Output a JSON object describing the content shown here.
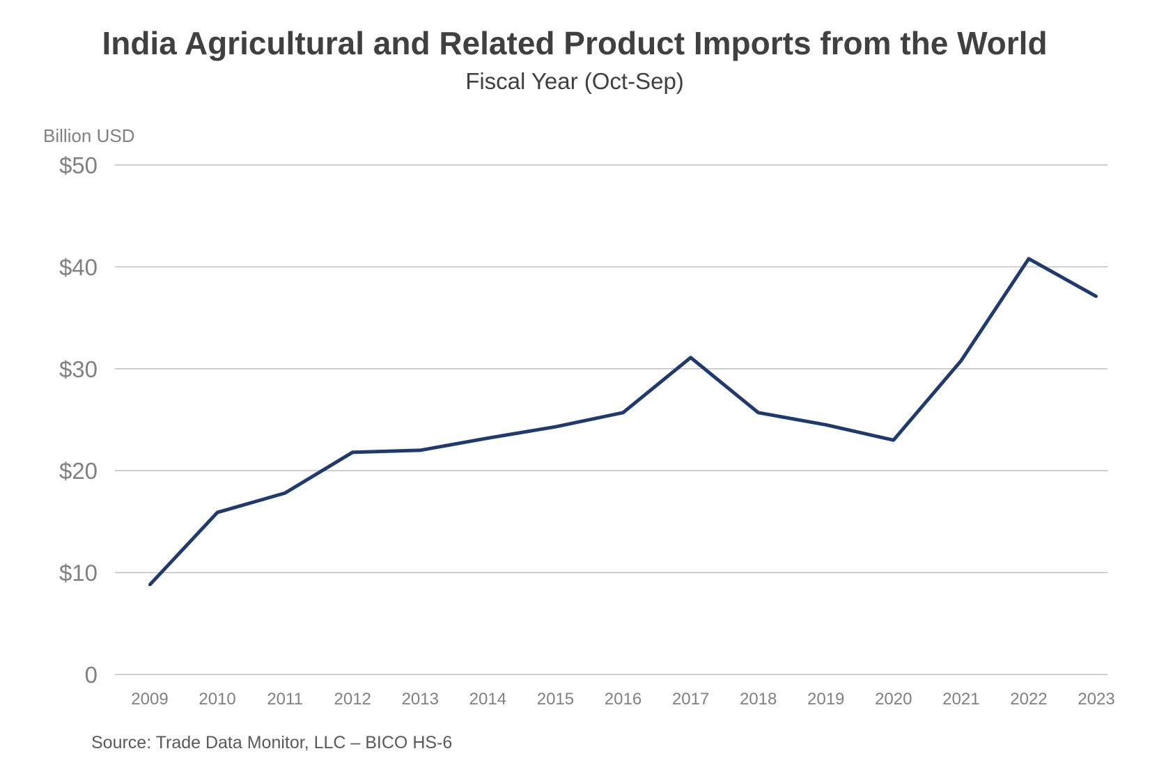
{
  "chart_data": {
    "type": "line",
    "title": "India Agricultural and Related Product Imports from the World",
    "subtitle": "Fiscal Year (Oct-Sep)",
    "ylabel": "Billion USD",
    "xlabel": "",
    "source": "Source: Trade Data Monitor, LLC – BICO HS-6",
    "ylim": [
      0,
      50
    ],
    "y_ticks": [
      0,
      10,
      20,
      30,
      40,
      50
    ],
    "y_tick_labels": [
      "0",
      "$10",
      "$20",
      "$30",
      "$40",
      "$50"
    ],
    "grid": true,
    "legend": "none",
    "categories": [
      "2009",
      "2010",
      "2011",
      "2012",
      "2013",
      "2014",
      "2015",
      "2016",
      "2017",
      "2018",
      "2019",
      "2020",
      "2021",
      "2022",
      "2023"
    ],
    "series": [
      {
        "values": [
          8.8,
          15.9,
          17.8,
          21.8,
          22.0,
          23.2,
          24.3,
          25.7,
          31.1,
          25.7,
          24.5,
          23.0,
          30.8,
          40.8,
          37.1
        ],
        "color": "#1f3a6e"
      }
    ]
  }
}
